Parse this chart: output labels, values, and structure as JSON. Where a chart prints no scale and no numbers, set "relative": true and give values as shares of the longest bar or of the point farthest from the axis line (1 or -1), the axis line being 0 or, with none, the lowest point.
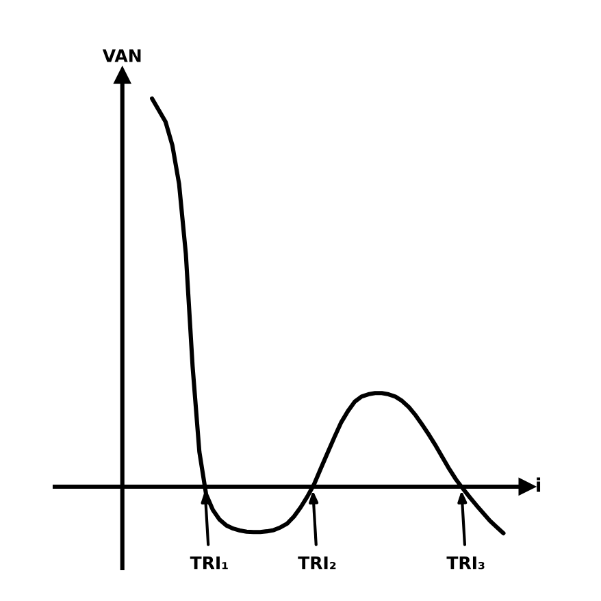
{
  "chart_data": {
    "type": "line",
    "relative": true,
    "xlabel": "i",
    "ylabel": "VAN",
    "marker": "none",
    "line_style": "solid",
    "categories": [
      null,
      null,
      null,
      null,
      null,
      null,
      null,
      null,
      null,
      null,
      null,
      null,
      null,
      null,
      null,
      null,
      null,
      null,
      null,
      null,
      null,
      null,
      null,
      null,
      null,
      null,
      null,
      null,
      null,
      null,
      null,
      null,
      null,
      null,
      null,
      null,
      null,
      null,
      null,
      null,
      null,
      null,
      null,
      null,
      null,
      null,
      null,
      null,
      null,
      null,
      null,
      null,
      null
    ],
    "series": [
      {
        "color": "#000000",
        "values": [
          1.0,
          0.97,
          0.94,
          0.88,
          0.78,
          0.6,
          0.31,
          0.09,
          -0.02,
          -0.06,
          -0.085,
          -0.1,
          -0.108,
          -0.113,
          -0.116,
          -0.117,
          -0.117,
          -0.115,
          -0.112,
          -0.105,
          -0.095,
          -0.077,
          -0.053,
          -0.025,
          0.007,
          0.048,
          0.088,
          0.128,
          0.166,
          0.195,
          0.219,
          0.232,
          0.238,
          0.241,
          0.241,
          0.238,
          0.232,
          0.221,
          0.205,
          0.184,
          0.159,
          0.133,
          0.105,
          0.075,
          0.045,
          0.018,
          -0.005,
          -0.027,
          -0.048,
          -0.068,
          -0.088,
          -0.104,
          -0.12
        ]
      }
    ],
    "annotations": [
      "TRI₁",
      "TRI₂",
      "TRI₃"
    ]
  }
}
